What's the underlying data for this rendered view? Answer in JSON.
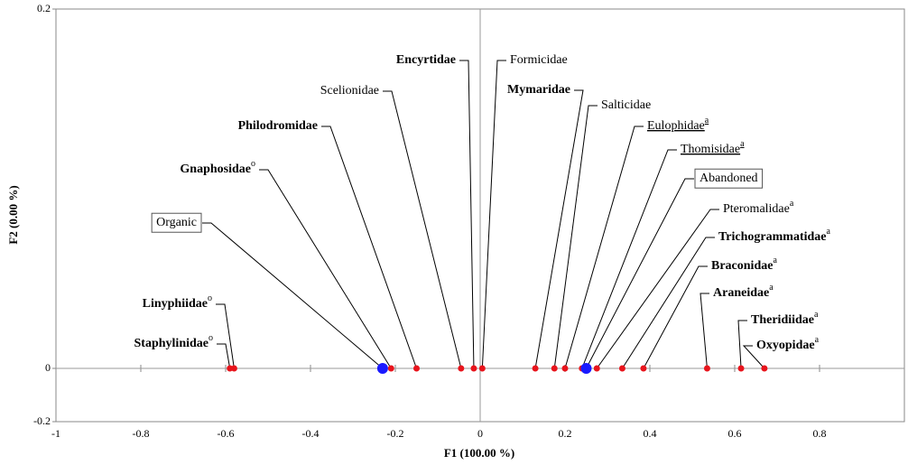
{
  "chart_data": {
    "type": "scatter",
    "xlabel": "F1 (100.00 %)",
    "ylabel": "F2 (0.00 %)",
    "xlim": [
      -1,
      1
    ],
    "ylim": [
      -0.2,
      0.2
    ],
    "xticks": [
      -1,
      -0.8,
      -0.6,
      -0.4,
      -0.2,
      0,
      0.2,
      0.4,
      0.6,
      0.8
    ],
    "yticks": [
      -0.2,
      0,
      0.2
    ],
    "series": [
      {
        "color": "#e8141c",
        "boxed": false,
        "points": [
          {
            "label": "Staphylinidae",
            "sup": "o",
            "bold": true,
            "x": -0.59,
            "y": 0
          },
          {
            "label": "Linyphiidae",
            "sup": "o",
            "bold": true,
            "x": -0.58,
            "y": 0
          },
          {
            "label": "Gnaphosidae",
            "sup": "o",
            "bold": true,
            "x": -0.21,
            "y": 0
          },
          {
            "label": "Philodromidae",
            "bold": true,
            "x": -0.15,
            "y": 0
          },
          {
            "label": "Scelionidae",
            "x": -0.045,
            "y": 0
          },
          {
            "label": "Encyrtidae",
            "bold": true,
            "x": -0.015,
            "y": 0
          },
          {
            "label": "Formicidae",
            "x": 0.005,
            "y": 0
          },
          {
            "label": "Mymaridae",
            "bold": true,
            "x": 0.13,
            "y": 0
          },
          {
            "label": "Salticidae",
            "x": 0.175,
            "y": 0
          },
          {
            "label": "Eulophidae",
            "sup": "a",
            "underline": true,
            "x": 0.2,
            "y": 0
          },
          {
            "label": "Thomisidae",
            "sup": "a",
            "underline": true,
            "x": 0.24,
            "y": 0
          },
          {
            "label": "Pteromalidae",
            "sup": "a",
            "x": 0.275,
            "y": 0
          },
          {
            "label": "Trichogrammatidae",
            "sup": "a",
            "bold": true,
            "x": 0.335,
            "y": 0
          },
          {
            "label": "Braconidae",
            "sup": "a",
            "bold": true,
            "x": 0.385,
            "y": 0
          },
          {
            "label": "Araneidae",
            "sup": "a",
            "bold": true,
            "x": 0.535,
            "y": 0
          },
          {
            "label": "Theridiidae",
            "sup": "a",
            "bold": true,
            "x": 0.615,
            "y": 0
          },
          {
            "label": "Oxyopidae",
            "sup": "a",
            "bold": true,
            "x": 0.67,
            "y": 0
          }
        ]
      },
      {
        "color": "#1a1aff",
        "boxed": true,
        "points": [
          {
            "label": "Organic",
            "x": -0.23,
            "y": 0
          },
          {
            "label": "Abandoned",
            "x": 0.25,
            "y": 0
          }
        ]
      }
    ]
  }
}
